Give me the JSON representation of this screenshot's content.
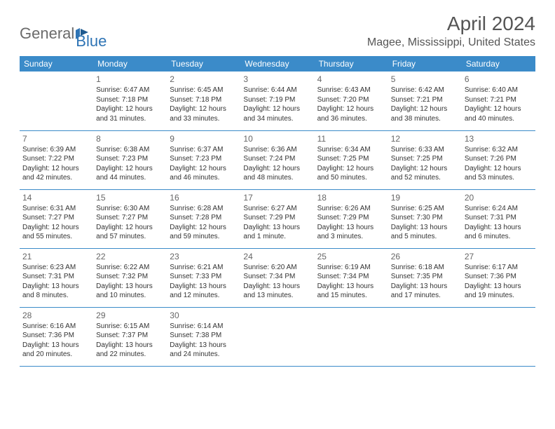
{
  "brand": {
    "part1": "General",
    "part2": "Blue"
  },
  "colors": {
    "header_bg": "#3b8bc9",
    "header_text": "#ffffff",
    "divider": "#3b8bc9",
    "brand_gray": "#6b6b6b",
    "brand_blue": "#2e74b5",
    "body_text": "#333333",
    "daynum_text": "#666666",
    "page_bg": "#ffffff"
  },
  "title": "April 2024",
  "location": "Magee, Mississippi, United States",
  "weekdays": [
    "Sunday",
    "Monday",
    "Tuesday",
    "Wednesday",
    "Thursday",
    "Friday",
    "Saturday"
  ],
  "weeks": [
    [
      null,
      {
        "n": "1",
        "sr": "Sunrise: 6:47 AM",
        "ss": "Sunset: 7:18 PM",
        "d1": "Daylight: 12 hours",
        "d2": "and 31 minutes."
      },
      {
        "n": "2",
        "sr": "Sunrise: 6:45 AM",
        "ss": "Sunset: 7:18 PM",
        "d1": "Daylight: 12 hours",
        "d2": "and 33 minutes."
      },
      {
        "n": "3",
        "sr": "Sunrise: 6:44 AM",
        "ss": "Sunset: 7:19 PM",
        "d1": "Daylight: 12 hours",
        "d2": "and 34 minutes."
      },
      {
        "n": "4",
        "sr": "Sunrise: 6:43 AM",
        "ss": "Sunset: 7:20 PM",
        "d1": "Daylight: 12 hours",
        "d2": "and 36 minutes."
      },
      {
        "n": "5",
        "sr": "Sunrise: 6:42 AM",
        "ss": "Sunset: 7:21 PM",
        "d1": "Daylight: 12 hours",
        "d2": "and 38 minutes."
      },
      {
        "n": "6",
        "sr": "Sunrise: 6:40 AM",
        "ss": "Sunset: 7:21 PM",
        "d1": "Daylight: 12 hours",
        "d2": "and 40 minutes."
      }
    ],
    [
      {
        "n": "7",
        "sr": "Sunrise: 6:39 AM",
        "ss": "Sunset: 7:22 PM",
        "d1": "Daylight: 12 hours",
        "d2": "and 42 minutes."
      },
      {
        "n": "8",
        "sr": "Sunrise: 6:38 AM",
        "ss": "Sunset: 7:23 PM",
        "d1": "Daylight: 12 hours",
        "d2": "and 44 minutes."
      },
      {
        "n": "9",
        "sr": "Sunrise: 6:37 AM",
        "ss": "Sunset: 7:23 PM",
        "d1": "Daylight: 12 hours",
        "d2": "and 46 minutes."
      },
      {
        "n": "10",
        "sr": "Sunrise: 6:36 AM",
        "ss": "Sunset: 7:24 PM",
        "d1": "Daylight: 12 hours",
        "d2": "and 48 minutes."
      },
      {
        "n": "11",
        "sr": "Sunrise: 6:34 AM",
        "ss": "Sunset: 7:25 PM",
        "d1": "Daylight: 12 hours",
        "d2": "and 50 minutes."
      },
      {
        "n": "12",
        "sr": "Sunrise: 6:33 AM",
        "ss": "Sunset: 7:25 PM",
        "d1": "Daylight: 12 hours",
        "d2": "and 52 minutes."
      },
      {
        "n": "13",
        "sr": "Sunrise: 6:32 AM",
        "ss": "Sunset: 7:26 PM",
        "d1": "Daylight: 12 hours",
        "d2": "and 53 minutes."
      }
    ],
    [
      {
        "n": "14",
        "sr": "Sunrise: 6:31 AM",
        "ss": "Sunset: 7:27 PM",
        "d1": "Daylight: 12 hours",
        "d2": "and 55 minutes."
      },
      {
        "n": "15",
        "sr": "Sunrise: 6:30 AM",
        "ss": "Sunset: 7:27 PM",
        "d1": "Daylight: 12 hours",
        "d2": "and 57 minutes."
      },
      {
        "n": "16",
        "sr": "Sunrise: 6:28 AM",
        "ss": "Sunset: 7:28 PM",
        "d1": "Daylight: 12 hours",
        "d2": "and 59 minutes."
      },
      {
        "n": "17",
        "sr": "Sunrise: 6:27 AM",
        "ss": "Sunset: 7:29 PM",
        "d1": "Daylight: 13 hours",
        "d2": "and 1 minute."
      },
      {
        "n": "18",
        "sr": "Sunrise: 6:26 AM",
        "ss": "Sunset: 7:29 PM",
        "d1": "Daylight: 13 hours",
        "d2": "and 3 minutes."
      },
      {
        "n": "19",
        "sr": "Sunrise: 6:25 AM",
        "ss": "Sunset: 7:30 PM",
        "d1": "Daylight: 13 hours",
        "d2": "and 5 minutes."
      },
      {
        "n": "20",
        "sr": "Sunrise: 6:24 AM",
        "ss": "Sunset: 7:31 PM",
        "d1": "Daylight: 13 hours",
        "d2": "and 6 minutes."
      }
    ],
    [
      {
        "n": "21",
        "sr": "Sunrise: 6:23 AM",
        "ss": "Sunset: 7:31 PM",
        "d1": "Daylight: 13 hours",
        "d2": "and 8 minutes."
      },
      {
        "n": "22",
        "sr": "Sunrise: 6:22 AM",
        "ss": "Sunset: 7:32 PM",
        "d1": "Daylight: 13 hours",
        "d2": "and 10 minutes."
      },
      {
        "n": "23",
        "sr": "Sunrise: 6:21 AM",
        "ss": "Sunset: 7:33 PM",
        "d1": "Daylight: 13 hours",
        "d2": "and 12 minutes."
      },
      {
        "n": "24",
        "sr": "Sunrise: 6:20 AM",
        "ss": "Sunset: 7:34 PM",
        "d1": "Daylight: 13 hours",
        "d2": "and 13 minutes."
      },
      {
        "n": "25",
        "sr": "Sunrise: 6:19 AM",
        "ss": "Sunset: 7:34 PM",
        "d1": "Daylight: 13 hours",
        "d2": "and 15 minutes."
      },
      {
        "n": "26",
        "sr": "Sunrise: 6:18 AM",
        "ss": "Sunset: 7:35 PM",
        "d1": "Daylight: 13 hours",
        "d2": "and 17 minutes."
      },
      {
        "n": "27",
        "sr": "Sunrise: 6:17 AM",
        "ss": "Sunset: 7:36 PM",
        "d1": "Daylight: 13 hours",
        "d2": "and 19 minutes."
      }
    ],
    [
      {
        "n": "28",
        "sr": "Sunrise: 6:16 AM",
        "ss": "Sunset: 7:36 PM",
        "d1": "Daylight: 13 hours",
        "d2": "and 20 minutes."
      },
      {
        "n": "29",
        "sr": "Sunrise: 6:15 AM",
        "ss": "Sunset: 7:37 PM",
        "d1": "Daylight: 13 hours",
        "d2": "and 22 minutes."
      },
      {
        "n": "30",
        "sr": "Sunrise: 6:14 AM",
        "ss": "Sunset: 7:38 PM",
        "d1": "Daylight: 13 hours",
        "d2": "and 24 minutes."
      },
      null,
      null,
      null,
      null
    ]
  ]
}
